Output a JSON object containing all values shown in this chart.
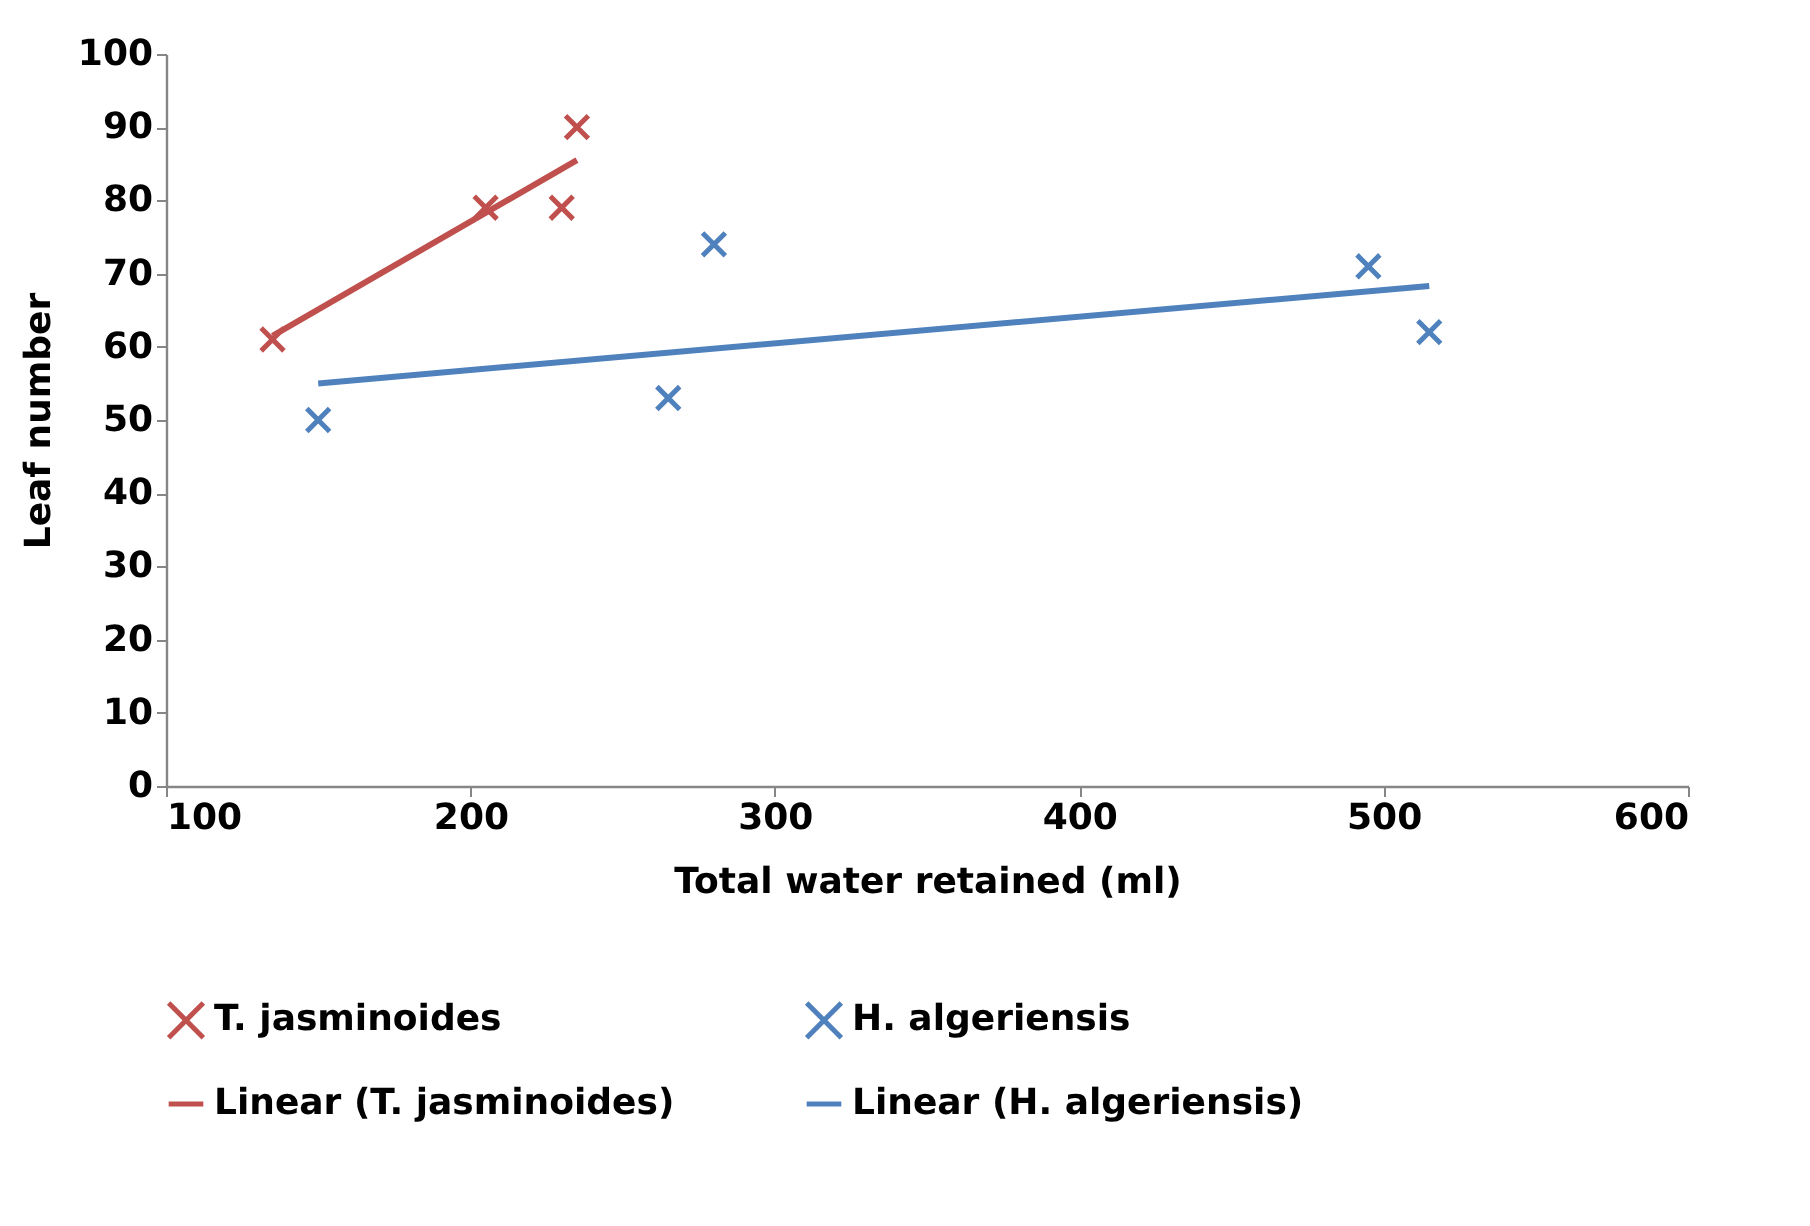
{
  "chart_data": {
    "type": "scatter",
    "xlabel": "Total water retained (ml)",
    "ylabel": "Leaf number",
    "xlim": [
      100,
      600
    ],
    "xticks": [
      100,
      200,
      300,
      400,
      500,
      600
    ],
    "ylim": [
      0,
      100
    ],
    "yticks": [
      0,
      10,
      20,
      30,
      40,
      50,
      60,
      70,
      80,
      90,
      100
    ],
    "grid": false,
    "legend": "bottom",
    "series": [
      {
        "name": "T. jasminoides",
        "type": "scatter",
        "marker": "cross",
        "color": "#c0504d",
        "x": [
          135,
          205,
          230,
          235
        ],
        "values": [
          61,
          79,
          79,
          90
        ]
      },
      {
        "name": "H. algeriensis",
        "type": "scatter",
        "marker": "cross",
        "color": "#4f81bd",
        "x": [
          150,
          265,
          280,
          495,
          515
        ],
        "values": [
          50,
          53,
          74,
          71,
          62
        ]
      },
      {
        "name": "Linear (T. jasminoides)",
        "type": "line",
        "color": "#c0504d",
        "x": [
          135,
          235
        ],
        "values": [
          61.5,
          85.5
        ]
      },
      {
        "name": "Linear (H. algeriensis)",
        "type": "line",
        "color": "#4f81bd",
        "x": [
          150,
          515
        ],
        "values": [
          55,
          68.3
        ]
      }
    ]
  }
}
